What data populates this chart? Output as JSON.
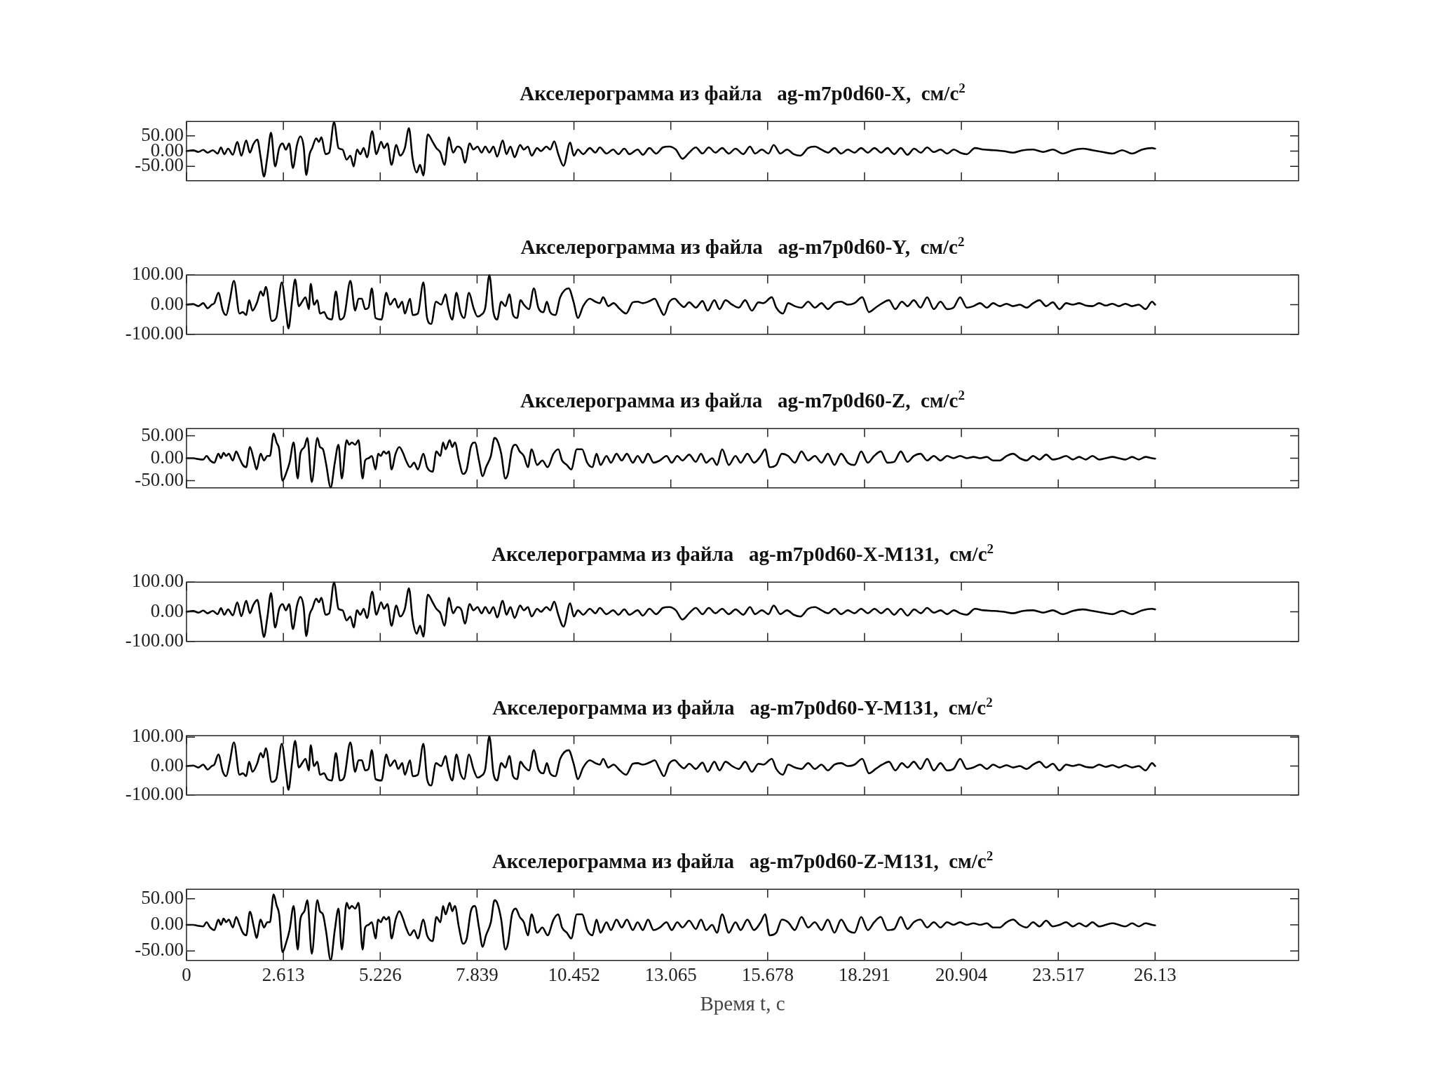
{
  "chart_data": [
    {
      "type": "line",
      "title": "Акселерограмма из файла   ag-m7p0d60-X,  см/с$^{2}$",
      "color": "#000000",
      "xlim": [
        0,
        30
      ],
      "xticks": [
        0,
        2.613,
        5.226,
        7.839,
        10.452,
        13.065,
        15.678,
        18.291,
        20.904,
        23.517,
        26.13
      ],
      "ylim": [
        -97,
        97
      ],
      "yticks": [
        {
          "value": -50,
          "label": "-50.00"
        },
        {
          "value": 0,
          "label": "0.00"
        },
        {
          "value": 50,
          "label": "50.00"
        }
      ],
      "tick_labels": "y",
      "x": [
        0,
        0.18,
        0.32,
        0.45,
        0.57,
        0.71,
        0.84,
        0.93,
        1.02,
        1.12,
        1.25,
        1.37,
        1.48,
        1.61,
        1.71,
        1.8,
        1.91,
        2.0,
        2.09,
        2.18,
        2.28,
        2.39,
        2.5,
        2.59,
        2.68,
        2.77,
        2.87,
        2.98,
        3.07,
        3.16,
        3.23,
        3.32,
        3.39,
        3.5,
        3.57,
        3.64,
        3.75,
        3.85,
        3.98,
        4.1,
        4.21,
        4.32,
        4.42,
        4.51,
        4.6,
        4.69,
        4.78,
        4.87,
        5.01,
        5.12,
        5.25,
        5.33,
        5.42,
        5.53,
        5.66,
        5.76,
        5.89,
        6.0,
        6.1,
        6.21,
        6.3,
        6.39,
        6.51,
        6.64,
        6.74,
        6.85,
        6.96,
        7.08,
        7.19,
        7.31,
        7.42,
        7.51,
        7.64,
        7.74,
        7.85,
        7.96,
        8.06,
        8.17,
        8.28,
        8.38,
        8.53,
        8.63,
        8.74,
        8.85,
        9.0,
        9.1,
        9.21,
        9.31,
        9.46,
        9.56,
        9.71,
        9.81,
        9.92,
        10.03,
        10.17,
        10.35,
        10.45,
        10.56,
        10.7,
        10.88,
        11.03,
        11.15,
        11.33,
        11.51,
        11.65,
        11.81,
        11.95,
        12.17,
        12.31,
        12.49,
        12.67,
        12.85,
        13.02,
        13.2,
        13.38,
        13.56,
        13.74,
        13.92,
        14.09,
        14.27,
        14.45,
        14.63,
        14.81,
        15.02,
        15.2,
        15.34,
        15.52,
        15.7,
        15.84,
        16.02,
        16.2,
        16.38,
        16.56,
        16.77,
        16.95,
        17.13,
        17.31,
        17.48,
        17.66,
        17.84,
        18.02,
        18.2,
        18.38,
        18.56,
        18.74,
        18.91,
        19.09,
        19.27,
        19.45,
        19.63,
        19.81,
        19.98,
        20.16,
        20.34,
        20.52,
        20.7,
        20.87,
        21.05,
        21.27,
        21.5,
        21.77,
        22.04,
        22.3,
        22.57,
        22.84,
        23.11,
        23.37,
        23.64,
        23.91,
        24.17,
        24.44,
        24.71,
        24.98,
        25.24,
        25.51,
        25.78,
        26.05,
        26.13
      ],
      "values": [
        0,
        3,
        -3,
        4,
        -5,
        3,
        -8,
        12,
        -10,
        8,
        -12,
        30,
        -15,
        35,
        -5,
        22,
        38,
        -20,
        -83,
        -20,
        60,
        -50,
        10,
        25,
        5,
        25,
        -55,
        20,
        48,
        15,
        -78,
        -10,
        10,
        42,
        30,
        45,
        -10,
        -5,
        95,
        10,
        5,
        -28,
        -15,
        -50,
        5,
        -10,
        10,
        -20,
        65,
        -10,
        30,
        10,
        25,
        -45,
        20,
        -15,
        10,
        75,
        -25,
        -70,
        -45,
        -80,
        55,
        30,
        10,
        -5,
        -45,
        45,
        -5,
        15,
        5,
        -38,
        25,
        5,
        15,
        -5,
        15,
        -5,
        15,
        -18,
        35,
        -10,
        15,
        -20,
        20,
        5,
        15,
        -15,
        10,
        0,
        15,
        5,
        32,
        -10,
        -48,
        28,
        -15,
        5,
        -10,
        10,
        -5,
        12,
        -8,
        5,
        -10,
        8,
        -10,
        5,
        -12,
        10,
        -8,
        12,
        15,
        5,
        -25,
        -5,
        12,
        -8,
        12,
        -5,
        10,
        -8,
        8,
        -10,
        15,
        -8,
        5,
        -8,
        20,
        -8,
        5,
        -10,
        -15,
        10,
        15,
        5,
        -5,
        10,
        -8,
        5,
        -5,
        10,
        -5,
        10,
        -5,
        10,
        -10,
        10,
        -12,
        8,
        -5,
        12,
        -3,
        5,
        -8,
        5,
        -5,
        -10,
        10,
        5,
        3,
        0,
        -5,
        3,
        5,
        -3,
        5,
        -8,
        3,
        8,
        3,
        -3,
        -8,
        3,
        -8,
        5,
        10,
        8
      ]
    },
    {
      "type": "line",
      "title": "Акселерограмма из файла   ag-m7p0d60-Y,  см/с$^{2}$",
      "color": "#000000",
      "xlim": [
        0,
        30
      ],
      "xticks": [
        0,
        2.613,
        5.226,
        7.839,
        10.452,
        13.065,
        15.678,
        18.291,
        20.904,
        23.517,
        26.13
      ],
      "ylim": [
        -100,
        100
      ],
      "yticks": [
        {
          "value": -100,
          "label": "-100.00"
        },
        {
          "value": 0,
          "label": "0.00"
        },
        {
          "value": 100,
          "label": "100.00"
        }
      ],
      "tick_labels": "y",
      "x": [
        0,
        0.18,
        0.32,
        0.45,
        0.57,
        0.68,
        0.75,
        0.86,
        0.98,
        1.07,
        1.16,
        1.28,
        1.43,
        1.52,
        1.61,
        1.69,
        1.78,
        1.91,
        2.0,
        2.07,
        2.14,
        2.3,
        2.42,
        2.57,
        2.68,
        2.75,
        2.85,
        2.93,
        3.03,
        3.12,
        3.21,
        3.3,
        3.35,
        3.44,
        3.53,
        3.6,
        3.71,
        3.8,
        3.92,
        4.03,
        4.14,
        4.25,
        4.42,
        4.55,
        4.64,
        4.73,
        4.82,
        4.91,
        5.0,
        5.1,
        5.26,
        5.39,
        5.49,
        5.62,
        5.71,
        5.82,
        5.89,
        6.03,
        6.1,
        6.24,
        6.39,
        6.49,
        6.6,
        6.73,
        6.87,
        6.99,
        7.06,
        7.17,
        7.28,
        7.39,
        7.49,
        7.62,
        7.74,
        7.85,
        7.94,
        8.06,
        8.17,
        8.28,
        8.38,
        8.49,
        8.6,
        8.71,
        8.81,
        8.92,
        9.01,
        9.1,
        9.24,
        9.37,
        9.49,
        9.63,
        9.72,
        9.81,
        9.95,
        10.08,
        10.31,
        10.44,
        10.56,
        10.7,
        10.88,
        11.03,
        11.15,
        11.24,
        11.38,
        11.52,
        11.69,
        11.86,
        12.04,
        12.17,
        12.31,
        12.49,
        12.63,
        12.76,
        12.88,
        13.02,
        13.17,
        13.29,
        13.42,
        13.56,
        13.74,
        13.92,
        14.06,
        14.24,
        14.38,
        14.54,
        14.72,
        14.9,
        15.07,
        15.25,
        15.43,
        15.56,
        15.79,
        15.91,
        16.09,
        16.23,
        16.41,
        16.59,
        16.77,
        16.95,
        17.13,
        17.3,
        17.48,
        17.66,
        17.84,
        18.02,
        18.23,
        18.41,
        18.59,
        18.77,
        18.95,
        19.12,
        19.3,
        19.45,
        19.62,
        19.8,
        19.98,
        20.16,
        20.34,
        20.52,
        20.69,
        20.87,
        21.05,
        21.23,
        21.41,
        21.59,
        21.76,
        21.94,
        22.12,
        22.3,
        22.48,
        22.66,
        22.84,
        23.01,
        23.19,
        23.37,
        23.55,
        23.73,
        23.91,
        24.08,
        24.26,
        24.44,
        24.62,
        24.8,
        24.98,
        25.15,
        25.33,
        25.51,
        25.69,
        25.87,
        26.05,
        26.13
      ],
      "values": [
        0,
        2,
        -5,
        5,
        -12,
        0,
        5,
        40,
        -20,
        -35,
        10,
        80,
        -30,
        -25,
        -35,
        15,
        -20,
        10,
        45,
        30,
        60,
        -55,
        -45,
        75,
        -20,
        -80,
        15,
        85,
        -5,
        10,
        25,
        -15,
        70,
        0,
        15,
        -30,
        -25,
        -45,
        -50,
        45,
        -50,
        -40,
        80,
        -20,
        20,
        20,
        -15,
        -10,
        55,
        -45,
        -50,
        40,
        0,
        20,
        -10,
        10,
        -30,
        20,
        -35,
        -30,
        75,
        -45,
        -65,
        10,
        0,
        35,
        -10,
        -50,
        40,
        -25,
        -45,
        40,
        -10,
        -40,
        -35,
        -10,
        100,
        -25,
        -50,
        10,
        -5,
        35,
        -35,
        -45,
        15,
        0,
        -15,
        55,
        -10,
        -25,
        10,
        -25,
        -35,
        25,
        55,
        10,
        -45,
        -5,
        20,
        10,
        5,
        25,
        -5,
        5,
        -15,
        -30,
        8,
        10,
        5,
        12,
        20,
        -10,
        -35,
        8,
        20,
        5,
        -8,
        8,
        -10,
        12,
        -20,
        15,
        -15,
        15,
        0,
        -10,
        15,
        -20,
        8,
        5,
        25,
        -10,
        -30,
        5,
        -5,
        -10,
        10,
        -10,
        5,
        -15,
        5,
        10,
        0,
        5,
        25,
        -25,
        -10,
        5,
        15,
        -15,
        10,
        -5,
        15,
        -10,
        25,
        -15,
        10,
        -15,
        -10,
        25,
        -10,
        -5,
        5,
        -10,
        5,
        -5,
        3,
        -5,
        0,
        -10,
        5,
        15,
        -5,
        8,
        -15,
        5,
        0,
        5,
        -3,
        -5,
        5,
        -3,
        3,
        -5,
        3,
        -5,
        0,
        -15,
        10,
        0
      ]
    },
    {
      "type": "line",
      "title": "Акселерограмма из файла   ag-m7p0d60-Z,  см/с$^{2}$",
      "color": "#000000",
      "xlim": [
        0,
        30
      ],
      "xticks": [
        0,
        2.613,
        5.226,
        7.839,
        10.452,
        13.065,
        15.678,
        18.291,
        20.904,
        23.517,
        26.13
      ],
      "ylim": [
        -66,
        66
      ],
      "yticks": [
        {
          "value": -50,
          "label": "-50.00"
        },
        {
          "value": 0,
          "label": "0.00"
        },
        {
          "value": 50,
          "label": "50.00"
        }
      ],
      "tick_labels": "y",
      "x": [
        0,
        0.18,
        0.32,
        0.45,
        0.54,
        0.64,
        0.75,
        0.86,
        0.93,
        1.0,
        1.07,
        1.14,
        1.25,
        1.34,
        1.43,
        1.52,
        1.61,
        1.71,
        1.82,
        1.89,
        2.0,
        2.09,
        2.18,
        2.25,
        2.35,
        2.43,
        2.5,
        2.59,
        2.68,
        2.78,
        2.89,
        3.0,
        3.07,
        3.18,
        3.26,
        3.38,
        3.53,
        3.6,
        3.68,
        3.76,
        3.89,
        4.0,
        4.1,
        4.19,
        4.32,
        4.39,
        4.46,
        4.55,
        4.64,
        4.75,
        4.82,
        4.91,
        5.0,
        5.1,
        5.17,
        5.24,
        5.32,
        5.39,
        5.46,
        5.53,
        5.64,
        5.74,
        5.85,
        5.92,
        6.03,
        6.14,
        6.24,
        6.39,
        6.49,
        6.64,
        6.74,
        6.85,
        6.92,
        6.99,
        7.1,
        7.17,
        7.24,
        7.35,
        7.46,
        7.56,
        7.67,
        7.78,
        7.89,
        7.99,
        8.08,
        8.21,
        8.31,
        8.38,
        8.49,
        8.6,
        8.67,
        8.78,
        8.88,
        8.99,
        9.1,
        9.21,
        9.31,
        9.46,
        9.6,
        9.74,
        9.9,
        10.03,
        10.13,
        10.26,
        10.38,
        10.53,
        10.67,
        10.81,
        10.95,
        11.06,
        11.17,
        11.33,
        11.45,
        11.6,
        11.74,
        11.88,
        12.04,
        12.17,
        12.31,
        12.45,
        12.6,
        12.77,
        12.95,
        13.09,
        13.24,
        13.38,
        13.56,
        13.74,
        13.88,
        14.02,
        14.18,
        14.31,
        14.45,
        14.63,
        14.81,
        14.95,
        15.13,
        15.31,
        15.49,
        15.61,
        15.73,
        15.91,
        16.06,
        16.23,
        16.41,
        16.59,
        16.77,
        16.95,
        17.13,
        17.3,
        17.48,
        17.66,
        17.84,
        18.02,
        18.2,
        18.38,
        18.55,
        18.73,
        18.91,
        19.09,
        19.27,
        19.45,
        19.62,
        19.8,
        19.98,
        20.16,
        20.34,
        20.52,
        20.69,
        20.87,
        21.05,
        21.23,
        21.41,
        21.59,
        21.76,
        21.94,
        22.12,
        22.3,
        22.48,
        22.66,
        22.84,
        23.01,
        23.19,
        23.37,
        23.55,
        23.73,
        23.91,
        24.08,
        24.26,
        24.44,
        24.62,
        24.8,
        24.98,
        25.15,
        25.33,
        25.51,
        25.69,
        25.87,
        26.05,
        26.13
      ],
      "values": [
        0,
        0,
        -2,
        -3,
        5,
        -5,
        -10,
        10,
        0,
        12,
        5,
        10,
        -5,
        15,
        0,
        -15,
        -20,
        25,
        -5,
        -25,
        10,
        -5,
        5,
        5,
        55,
        35,
        20,
        -50,
        -35,
        -10,
        35,
        -45,
        10,
        25,
        45,
        -53,
        45,
        25,
        20,
        -10,
        -65,
        -10,
        30,
        -45,
        40,
        30,
        35,
        30,
        40,
        -45,
        -5,
        0,
        5,
        -25,
        10,
        5,
        15,
        10,
        15,
        -25,
        10,
        25,
        10,
        -5,
        -20,
        -10,
        -25,
        10,
        -20,
        -30,
        15,
        5,
        35,
        20,
        40,
        25,
        35,
        -5,
        -35,
        -25,
        25,
        35,
        -5,
        -40,
        -20,
        5,
        45,
        40,
        10,
        -45,
        -35,
        20,
        30,
        15,
        5,
        -20,
        20,
        -15,
        -5,
        -20,
        10,
        20,
        -5,
        -15,
        -25,
        20,
        20,
        -10,
        -20,
        10,
        -15,
        5,
        -10,
        10,
        -5,
        10,
        -10,
        5,
        -10,
        10,
        -10,
        -5,
        5,
        -10,
        5,
        -5,
        8,
        -8,
        10,
        -10,
        0,
        -15,
        20,
        -15,
        5,
        -10,
        10,
        -10,
        5,
        20,
        -20,
        -15,
        10,
        5,
        -10,
        15,
        -5,
        5,
        -10,
        10,
        -15,
        10,
        -10,
        -15,
        15,
        -10,
        5,
        15,
        -10,
        -8,
        15,
        -8,
        5,
        10,
        -5,
        5,
        -5,
        5,
        0,
        5,
        0,
        3,
        0,
        3,
        -5,
        -5,
        5,
        10,
        0,
        -5,
        5,
        -3,
        8,
        -3,
        0,
        5,
        -3,
        3,
        -3,
        5,
        -3,
        0,
        3,
        0,
        -3,
        3,
        -3,
        3,
        0,
        -1
      ]
    },
    {
      "type": "line",
      "title": "Акселерограмма из файла   ag-m7p0d60-X-M131,  см/с$^{2}$",
      "color": "#000000",
      "xlim": [
        0,
        30
      ],
      "xticks": [
        0,
        2.613,
        5.226,
        7.839,
        10.452,
        13.065,
        15.678,
        18.291,
        20.904,
        23.517,
        26.13
      ],
      "ylim": [
        -100,
        100
      ],
      "yticks": [
        {
          "value": -100,
          "label": "-100.00"
        },
        {
          "value": 0,
          "label": "0.00"
        },
        {
          "value": 100,
          "label": "100.00"
        }
      ],
      "tick_labels": "y",
      "x": [
        0,
        0.18,
        0.32,
        0.45,
        0.57,
        0.71,
        0.84,
        0.93,
        1.02,
        1.12,
        1.25,
        1.37,
        1.48,
        1.61,
        1.71,
        1.8,
        1.91,
        2.0,
        2.09,
        2.18,
        2.28,
        2.39,
        2.5,
        2.59,
        2.68,
        2.77,
        2.87,
        2.98,
        3.07,
        3.16,
        3.23,
        3.32,
        3.39,
        3.5,
        3.57,
        3.64,
        3.75,
        3.85,
        3.98,
        4.1,
        4.21,
        4.32,
        4.42,
        4.51,
        4.6,
        4.69,
        4.78,
        4.87,
        5.01,
        5.12,
        5.25,
        5.33,
        5.42,
        5.53,
        5.66,
        5.76,
        5.89,
        6.0,
        6.1,
        6.21,
        6.3,
        6.39,
        6.51,
        6.64,
        6.74,
        6.85,
        6.96,
        7.08,
        7.19,
        7.31,
        7.42,
        7.51,
        7.64,
        7.74,
        7.85,
        7.96,
        8.06,
        8.17,
        8.28,
        8.38,
        8.53,
        8.63,
        8.74,
        8.85,
        9.0,
        9.1,
        9.21,
        9.31,
        9.46,
        9.56,
        9.71,
        9.81,
        9.92,
        10.03,
        10.17,
        10.35,
        10.45,
        10.56,
        10.7,
        10.88,
        11.03,
        11.15,
        11.33,
        11.51,
        11.65,
        11.81,
        11.95,
        12.17,
        12.31,
        12.49,
        12.67,
        12.85,
        13.02,
        13.2,
        13.38,
        13.56,
        13.74,
        13.92,
        14.09,
        14.27,
        14.45,
        14.63,
        14.81,
        15.02,
        15.2,
        15.34,
        15.52,
        15.7,
        15.84,
        16.02,
        16.2,
        16.38,
        16.56,
        16.77,
        16.95,
        17.13,
        17.31,
        17.48,
        17.66,
        17.84,
        18.02,
        18.2,
        18.38,
        18.56,
        18.74,
        18.91,
        19.09,
        19.27,
        19.45,
        19.63,
        19.81,
        19.98,
        20.16,
        20.34,
        20.52,
        20.7,
        20.87,
        21.05,
        21.27,
        21.5,
        21.77,
        22.04,
        22.3,
        22.57,
        22.84,
        23.11,
        23.37,
        23.64,
        23.91,
        24.17,
        24.44,
        24.71,
        24.98,
        25.24,
        25.51,
        25.78,
        26.05,
        26.13
      ],
      "values": [
        0,
        3,
        -3,
        4,
        -5,
        3,
        -8,
        12,
        -10,
        8,
        -12,
        32,
        -15,
        37,
        -5,
        23,
        40,
        -20,
        -85,
        -20,
        63,
        -53,
        10,
        26,
        5,
        26,
        -58,
        21,
        50,
        16,
        -82,
        -10,
        10,
        44,
        32,
        47,
        -10,
        -5,
        99,
        10,
        5,
        -29,
        -16,
        -53,
        5,
        -10,
        10,
        -21,
        68,
        -10,
        32,
        10,
        26,
        -47,
        21,
        -16,
        10,
        79,
        -26,
        -74,
        -47,
        -84,
        58,
        32,
        10,
        -5,
        -47,
        47,
        -5,
        16,
        5,
        -40,
        26,
        5,
        16,
        -5,
        16,
        -5,
        16,
        -19,
        37,
        -10,
        16,
        -21,
        21,
        5,
        16,
        -16,
        10,
        0,
        16,
        5,
        34,
        -10,
        -50,
        29,
        -16,
        5,
        -10,
        10,
        -5,
        13,
        -8,
        5,
        -10,
        8,
        -10,
        5,
        -13,
        10,
        -8,
        13,
        16,
        5,
        -26,
        -5,
        13,
        -8,
        13,
        -5,
        10,
        -8,
        8,
        -10,
        16,
        -8,
        5,
        -8,
        21,
        -8,
        5,
        -10,
        -16,
        10,
        16,
        5,
        -5,
        10,
        -8,
        5,
        -5,
        10,
        -5,
        10,
        -5,
        10,
        -10,
        10,
        -13,
        8,
        -5,
        13,
        -3,
        5,
        -8,
        5,
        -5,
        -10,
        10,
        5,
        3,
        0,
        -5,
        3,
        5,
        -3,
        5,
        -8,
        3,
        8,
        3,
        -3,
        -8,
        3,
        -8,
        5,
        10,
        8
      ]
    },
    {
      "type": "line",
      "title": "Акселерограмма из файла   ag-m7p0d60-Y-M131,  см/с$^{2}$",
      "color": "#000000",
      "xlim": [
        0,
        30
      ],
      "xticks": [
        0,
        2.613,
        5.226,
        7.839,
        10.452,
        13.065,
        15.678,
        18.291,
        20.904,
        23.517,
        26.13
      ],
      "ylim": [
        -100,
        105
      ],
      "yticks": [
        {
          "value": -100,
          "label": "-100.00"
        },
        {
          "value": 0,
          "label": "0.00"
        },
        {
          "value": 100,
          "label": "100.00"
        }
      ],
      "tick_labels": "y",
      "x": [
        0,
        0.18,
        0.32,
        0.45,
        0.57,
        0.68,
        0.75,
        0.86,
        0.98,
        1.07,
        1.16,
        1.28,
        1.43,
        1.52,
        1.61,
        1.69,
        1.78,
        1.91,
        2.0,
        2.07,
        2.14,
        2.3,
        2.42,
        2.57,
        2.68,
        2.75,
        2.85,
        2.93,
        3.03,
        3.12,
        3.21,
        3.3,
        3.35,
        3.44,
        3.53,
        3.6,
        3.71,
        3.8,
        3.92,
        4.03,
        4.14,
        4.25,
        4.42,
        4.55,
        4.64,
        4.73,
        4.82,
        4.91,
        5.0,
        5.1,
        5.26,
        5.39,
        5.49,
        5.62,
        5.71,
        5.82,
        5.89,
        6.03,
        6.1,
        6.24,
        6.39,
        6.49,
        6.6,
        6.73,
        6.87,
        6.99,
        7.06,
        7.17,
        7.28,
        7.39,
        7.49,
        7.62,
        7.74,
        7.85,
        7.94,
        8.06,
        8.17,
        8.28,
        8.38,
        8.49,
        8.6,
        8.71,
        8.81,
        8.92,
        9.01,
        9.1,
        9.24,
        9.37,
        9.49,
        9.63,
        9.72,
        9.81,
        9.95,
        10.08,
        10.31,
        10.44,
        10.56,
        10.7,
        10.88,
        11.03,
        11.15,
        11.24,
        11.38,
        11.52,
        11.69,
        11.86,
        12.04,
        12.17,
        12.31,
        12.49,
        12.63,
        12.76,
        12.88,
        13.02,
        13.17,
        13.29,
        13.42,
        13.56,
        13.74,
        13.92,
        14.06,
        14.24,
        14.38,
        14.54,
        14.72,
        14.9,
        15.07,
        15.25,
        15.43,
        15.56,
        15.79,
        15.91,
        16.09,
        16.23,
        16.41,
        16.59,
        16.77,
        16.95,
        17.13,
        17.3,
        17.48,
        17.66,
        17.84,
        18.02,
        18.23,
        18.41,
        18.59,
        18.77,
        18.95,
        19.12,
        19.3,
        19.45,
        19.62,
        19.8,
        19.98,
        20.16,
        20.34,
        20.52,
        20.69,
        20.87,
        21.05,
        21.23,
        21.41,
        21.59,
        21.76,
        21.94,
        22.12,
        22.3,
        22.48,
        22.66,
        22.84,
        23.01,
        23.19,
        23.37,
        23.55,
        23.73,
        23.91,
        24.08,
        24.26,
        24.44,
        24.62,
        24.8,
        24.98,
        25.15,
        25.33,
        25.51,
        25.69,
        25.87,
        26.05,
        26.13
      ],
      "values": [
        0,
        2,
        -5,
        5,
        -12,
        0,
        5,
        40,
        -20,
        -35,
        10,
        82,
        -30,
        -25,
        -35,
        15,
        -20,
        10,
        45,
        30,
        62,
        -55,
        -45,
        77,
        -20,
        -82,
        15,
        87,
        -5,
        10,
        25,
        -15,
        72,
        0,
        15,
        -30,
        -25,
        -45,
        -50,
        45,
        -50,
        -40,
        82,
        -20,
        20,
        20,
        -15,
        -10,
        55,
        -45,
        -50,
        40,
        0,
        20,
        -10,
        10,
        -30,
        20,
        -35,
        -30,
        77,
        -45,
        -67,
        10,
        0,
        35,
        -10,
        -50,
        40,
        -25,
        -45,
        40,
        -10,
        -40,
        -35,
        -10,
        103,
        -25,
        -50,
        10,
        -5,
        35,
        -35,
        -45,
        15,
        0,
        -15,
        55,
        -10,
        -25,
        10,
        -25,
        -35,
        25,
        55,
        10,
        -45,
        -5,
        20,
        10,
        5,
        25,
        -5,
        5,
        -15,
        -30,
        8,
        10,
        5,
        12,
        20,
        -10,
        -35,
        8,
        20,
        5,
        -8,
        8,
        -10,
        12,
        -20,
        15,
        -15,
        15,
        0,
        -10,
        15,
        -20,
        8,
        5,
        25,
        -10,
        -30,
        5,
        -5,
        -10,
        10,
        -10,
        5,
        -15,
        5,
        10,
        0,
        5,
        25,
        -25,
        -10,
        5,
        15,
        -15,
        10,
        -5,
        15,
        -10,
        25,
        -15,
        10,
        -15,
        -10,
        25,
        -10,
        -5,
        5,
        -10,
        5,
        -5,
        3,
        -5,
        0,
        -10,
        5,
        15,
        -5,
        8,
        -15,
        5,
        0,
        5,
        -3,
        -5,
        5,
        -3,
        3,
        -5,
        3,
        -5,
        0,
        -15,
        10,
        0
      ]
    },
    {
      "type": "line",
      "title": "Акселерограмма из файла   ag-m7p0d60-Z-M131,  см/с$^{2}$",
      "color": "#000000",
      "xlim": [
        0,
        30
      ],
      "xticks": [
        0,
        2.613,
        5.226,
        7.839,
        10.452,
        13.065,
        15.678,
        18.291,
        20.904,
        23.517,
        26.13
      ],
      "ylim": [
        -68,
        68
      ],
      "yticks": [
        {
          "value": -50,
          "label": "-50.00"
        },
        {
          "value": 0,
          "label": "0.00"
        },
        {
          "value": 50,
          "label": "50.00"
        }
      ],
      "xlabel": "Время t, с",
      "x": [
        0,
        0.18,
        0.32,
        0.45,
        0.54,
        0.64,
        0.75,
        0.86,
        0.93,
        1.0,
        1.07,
        1.14,
        1.25,
        1.34,
        1.43,
        1.52,
        1.61,
        1.71,
        1.82,
        1.89,
        2.0,
        2.09,
        2.18,
        2.25,
        2.35,
        2.43,
        2.5,
        2.59,
        2.68,
        2.78,
        2.89,
        3.0,
        3.07,
        3.18,
        3.26,
        3.38,
        3.53,
        3.6,
        3.68,
        3.76,
        3.89,
        4.0,
        4.1,
        4.19,
        4.32,
        4.39,
        4.46,
        4.55,
        4.64,
        4.75,
        4.82,
        4.91,
        5.0,
        5.1,
        5.17,
        5.24,
        5.32,
        5.39,
        5.46,
        5.53,
        5.64,
        5.74,
        5.85,
        5.92,
        6.03,
        6.14,
        6.24,
        6.39,
        6.49,
        6.64,
        6.74,
        6.85,
        6.92,
        6.99,
        7.1,
        7.17,
        7.24,
        7.35,
        7.46,
        7.56,
        7.67,
        7.78,
        7.89,
        7.99,
        8.08,
        8.21,
        8.31,
        8.38,
        8.49,
        8.6,
        8.67,
        8.78,
        8.88,
        8.99,
        9.1,
        9.21,
        9.31,
        9.46,
        9.6,
        9.74,
        9.9,
        10.03,
        10.13,
        10.26,
        10.38,
        10.53,
        10.67,
        10.81,
        10.95,
        11.06,
        11.17,
        11.33,
        11.45,
        11.6,
        11.74,
        11.88,
        12.04,
        12.17,
        12.31,
        12.45,
        12.6,
        12.77,
        12.95,
        13.09,
        13.24,
        13.38,
        13.56,
        13.74,
        13.88,
        14.02,
        14.18,
        14.31,
        14.45,
        14.63,
        14.81,
        14.95,
        15.13,
        15.31,
        15.49,
        15.61,
        15.73,
        15.91,
        16.06,
        16.23,
        16.41,
        16.59,
        16.77,
        16.95,
        17.13,
        17.3,
        17.48,
        17.66,
        17.84,
        18.02,
        18.2,
        18.38,
        18.55,
        18.73,
        18.91,
        19.09,
        19.27,
        19.45,
        19.62,
        19.8,
        19.98,
        20.16,
        20.34,
        20.52,
        20.69,
        20.87,
        21.05,
        21.23,
        21.41,
        21.59,
        21.76,
        21.94,
        22.12,
        22.3,
        22.48,
        22.66,
        22.84,
        23.01,
        23.19,
        23.37,
        23.55,
        23.73,
        23.91,
        24.08,
        24.26,
        24.44,
        24.62,
        24.8,
        24.98,
        25.15,
        25.33,
        25.51,
        25.69,
        25.87,
        26.05,
        26.13
      ],
      "values": [
        0,
        0,
        -2,
        -3,
        5,
        -5,
        -10,
        10,
        0,
        12,
        5,
        10,
        -5,
        15,
        0,
        -15,
        -20,
        25,
        -5,
        -25,
        10,
        -5,
        5,
        5,
        58,
        37,
        20,
        -52,
        -36,
        -10,
        36,
        -47,
        10,
        26,
        47,
        -55,
        47,
        26,
        20,
        -10,
        -67,
        -10,
        31,
        -47,
        42,
        31,
        36,
        31,
        42,
        -47,
        -5,
        0,
        5,
        -26,
        10,
        5,
        15,
        10,
        15,
        -26,
        10,
        26,
        10,
        -5,
        -20,
        -10,
        -26,
        10,
        -20,
        -31,
        15,
        5,
        36,
        20,
        42,
        26,
        36,
        -5,
        -36,
        -26,
        26,
        36,
        -5,
        -42,
        -20,
        5,
        47,
        42,
        10,
        -47,
        -36,
        20,
        31,
        15,
        5,
        -20,
        20,
        -15,
        -5,
        -20,
        10,
        20,
        -5,
        -15,
        -26,
        20,
        20,
        -10,
        -20,
        10,
        -15,
        5,
        -10,
        10,
        -5,
        10,
        -10,
        5,
        -10,
        10,
        -10,
        -5,
        5,
        -10,
        5,
        -5,
        8,
        -8,
        10,
        -10,
        0,
        -15,
        20,
        -15,
        5,
        -10,
        10,
        -10,
        5,
        20,
        -20,
        -15,
        10,
        5,
        -10,
        15,
        -5,
        5,
        -10,
        10,
        -15,
        10,
        -10,
        -15,
        15,
        -10,
        5,
        15,
        -10,
        -8,
        15,
        -8,
        5,
        10,
        -5,
        5,
        -5,
        5,
        0,
        5,
        0,
        3,
        0,
        3,
        -5,
        -5,
        5,
        10,
        0,
        -5,
        5,
        -3,
        8,
        -3,
        0,
        5,
        -3,
        3,
        -3,
        5,
        -3,
        0,
        3,
        0,
        -3,
        3,
        -3,
        3,
        0,
        -1
      ]
    }
  ]
}
